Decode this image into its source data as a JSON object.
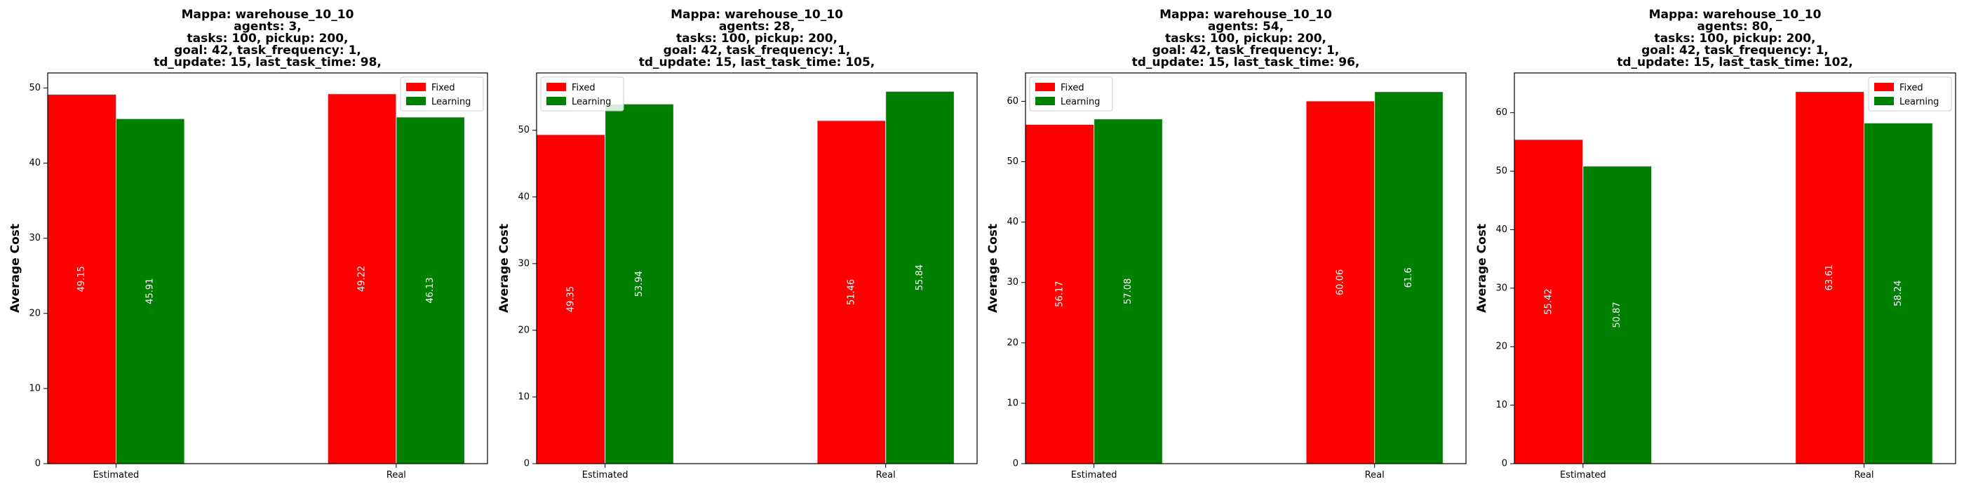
{
  "colors": {
    "fixed": "#ff0000",
    "learning": "#008000"
  },
  "chart_data": [
    {
      "type": "bar",
      "title_lines": [
        "Mappa: warehouse_10_10",
        "agents: 3,",
        "tasks: 100, pickup: 200,",
        "goal: 42, task_frequency: 1,",
        "td_update: 15, last_task_time: 98,"
      ],
      "categories": [
        "Estimated",
        "Real"
      ],
      "series": [
        {
          "name": "Fixed",
          "values": [
            49.15,
            49.22
          ]
        },
        {
          "name": "Learning",
          "values": [
            45.91,
            46.13
          ]
        }
      ],
      "ylabel": "Average Cost",
      "ylim": [
        0,
        52
      ],
      "yticks": [
        0,
        10,
        20,
        30,
        40,
        50
      ],
      "legend_position": "top-right"
    },
    {
      "type": "bar",
      "title_lines": [
        "Mappa: warehouse_10_10",
        "agents: 28,",
        "tasks: 100, pickup: 200,",
        "goal: 42, task_frequency: 1,",
        "td_update: 15, last_task_time: 105,"
      ],
      "categories": [
        "Estimated",
        "Real"
      ],
      "series": [
        {
          "name": "Fixed",
          "values": [
            49.35,
            51.46
          ]
        },
        {
          "name": "Learning",
          "values": [
            53.94,
            55.84
          ]
        }
      ],
      "ylabel": "Average Cost",
      "ylim": [
        0,
        58.6
      ],
      "yticks": [
        0,
        10,
        20,
        30,
        40,
        50
      ],
      "legend_position": "top-left"
    },
    {
      "type": "bar",
      "title_lines": [
        "Mappa: warehouse_10_10",
        "agents: 54,",
        "tasks: 100, pickup: 200,",
        "goal: 42, task_frequency: 1,",
        "td_update: 15, last_task_time: 96,"
      ],
      "categories": [
        "Estimated",
        "Real"
      ],
      "series": [
        {
          "name": "Fixed",
          "values": [
            56.17,
            60.06
          ]
        },
        {
          "name": "Learning",
          "values": [
            57.08,
            61.6
          ]
        }
      ],
      "ylabel": "Average Cost",
      "ylim": [
        0,
        64.7
      ],
      "yticks": [
        0,
        10,
        20,
        30,
        40,
        50,
        60
      ],
      "legend_position": "top-left"
    },
    {
      "type": "bar",
      "title_lines": [
        "Mappa: warehouse_10_10",
        "agents: 80,",
        "tasks: 100, pickup: 200,",
        "goal: 42, task_frequency: 1,",
        "td_update: 15, last_task_time: 102,"
      ],
      "categories": [
        "Estimated",
        "Real"
      ],
      "series": [
        {
          "name": "Fixed",
          "values": [
            55.42,
            63.61
          ]
        },
        {
          "name": "Learning",
          "values": [
            50.87,
            58.24
          ]
        }
      ],
      "ylabel": "Average Cost",
      "ylim": [
        0,
        66.8
      ],
      "yticks": [
        0,
        10,
        20,
        30,
        40,
        50,
        60
      ],
      "legend_position": "top-right"
    }
  ]
}
